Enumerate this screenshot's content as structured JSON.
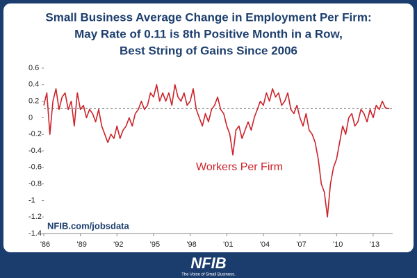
{
  "chart_data": {
    "type": "line",
    "title": [
      "Small Business Average Change in Employment Per Firm:",
      "May Rate of 0.11 is 8th Positive Month in a Row,",
      "Best String of Gains Since 2006"
    ],
    "series": [
      {
        "name": "Workers Per Firm",
        "color": "#cc2229",
        "x": [
          1986,
          1986.25,
          1986.5,
          1986.75,
          1987,
          1987.25,
          1987.5,
          1987.75,
          1988,
          1988.25,
          1988.5,
          1988.75,
          1989,
          1989.25,
          1989.5,
          1989.75,
          1990,
          1990.25,
          1990.5,
          1990.75,
          1991,
          1991.25,
          1991.5,
          1991.75,
          1992,
          1992.25,
          1992.5,
          1992.75,
          1993,
          1993.25,
          1993.5,
          1993.75,
          1994,
          1994.25,
          1994.5,
          1994.75,
          1995,
          1995.25,
          1995.5,
          1995.75,
          1996,
          1996.25,
          1996.5,
          1996.75,
          1997,
          1997.25,
          1997.5,
          1997.75,
          1998,
          1998.25,
          1998.5,
          1998.75,
          1999,
          1999.25,
          1999.5,
          1999.75,
          2000,
          2000.25,
          2000.5,
          2000.75,
          2001,
          2001.25,
          2001.5,
          2001.75,
          2002,
          2002.25,
          2002.5,
          2002.75,
          2003,
          2003.25,
          2003.5,
          2003.75,
          2004,
          2004.25,
          2004.5,
          2004.75,
          2005,
          2005.25,
          2005.5,
          2005.75,
          2006,
          2006.25,
          2006.5,
          2006.75,
          2007,
          2007.25,
          2007.5,
          2007.75,
          2008,
          2008.25,
          2008.5,
          2008.75,
          2009,
          2009.25,
          2009.5,
          2009.75,
          2010,
          2010.25,
          2010.5,
          2010.75,
          2011,
          2011.25,
          2011.5,
          2011.75,
          2012,
          2012.25,
          2012.5,
          2012.75,
          2013,
          2013.25,
          2013.5,
          2013.75,
          2014,
          2014.33
        ],
        "values": [
          0.15,
          0.3,
          -0.2,
          0.2,
          0.35,
          0.1,
          0.25,
          0.3,
          0.1,
          0.2,
          -0.1,
          0.3,
          0.1,
          0.15,
          0.0,
          0.1,
          0.05,
          -0.05,
          0.1,
          -0.1,
          -0.2,
          -0.3,
          -0.2,
          -0.25,
          -0.1,
          -0.25,
          -0.15,
          -0.1,
          0.0,
          -0.1,
          0.05,
          0.1,
          0.2,
          0.1,
          0.15,
          0.3,
          0.25,
          0.4,
          0.2,
          0.3,
          0.2,
          0.3,
          0.15,
          0.4,
          0.25,
          0.2,
          0.3,
          0.15,
          0.2,
          0.35,
          0.1,
          0.0,
          -0.1,
          0.05,
          -0.05,
          0.1,
          0.15,
          0.25,
          0.1,
          0.05,
          -0.1,
          -0.2,
          -0.45,
          -0.15,
          -0.1,
          -0.25,
          -0.15,
          -0.05,
          -0.15,
          0.0,
          0.1,
          0.2,
          0.15,
          0.3,
          0.2,
          0.35,
          0.25,
          0.3,
          0.15,
          0.2,
          0.3,
          0.1,
          0.05,
          0.15,
          0.0,
          -0.1,
          0.05,
          -0.15,
          -0.2,
          -0.3,
          -0.5,
          -0.8,
          -0.9,
          -1.2,
          -0.8,
          -0.6,
          -0.5,
          -0.3,
          -0.1,
          -0.2,
          0.0,
          0.05,
          -0.1,
          -0.05,
          0.1,
          0.05,
          -0.05,
          0.1,
          0.0,
          0.15,
          0.1,
          0.2,
          0.12,
          0.11
        ]
      }
    ],
    "reference_line": 0.11,
    "xlim": [
      1986,
      2014.6
    ],
    "xticks": [
      {
        "value": 1986,
        "label": "'86"
      },
      {
        "value": 1989,
        "label": "'89"
      },
      {
        "value": 1992,
        "label": "'92"
      },
      {
        "value": 1995,
        "label": "'95"
      },
      {
        "value": 1998,
        "label": "'98"
      },
      {
        "value": 2001,
        "label": "'01"
      },
      {
        "value": 2004,
        "label": "'04"
      },
      {
        "value": 2007,
        "label": "'07"
      },
      {
        "value": 2010,
        "label": "'10"
      },
      {
        "value": 2013,
        "label": "'13"
      }
    ],
    "ylim": [
      -1.4,
      0.6
    ],
    "yticks": [
      0.6,
      0.4,
      0.2,
      0,
      -0.2,
      -0.4,
      -0.6,
      -0.8,
      -1,
      -1.2,
      -1.4
    ],
    "source": "NFIB.com/jobsdata",
    "logo": "NFIB",
    "tagline": "The Voice of Small Business."
  }
}
